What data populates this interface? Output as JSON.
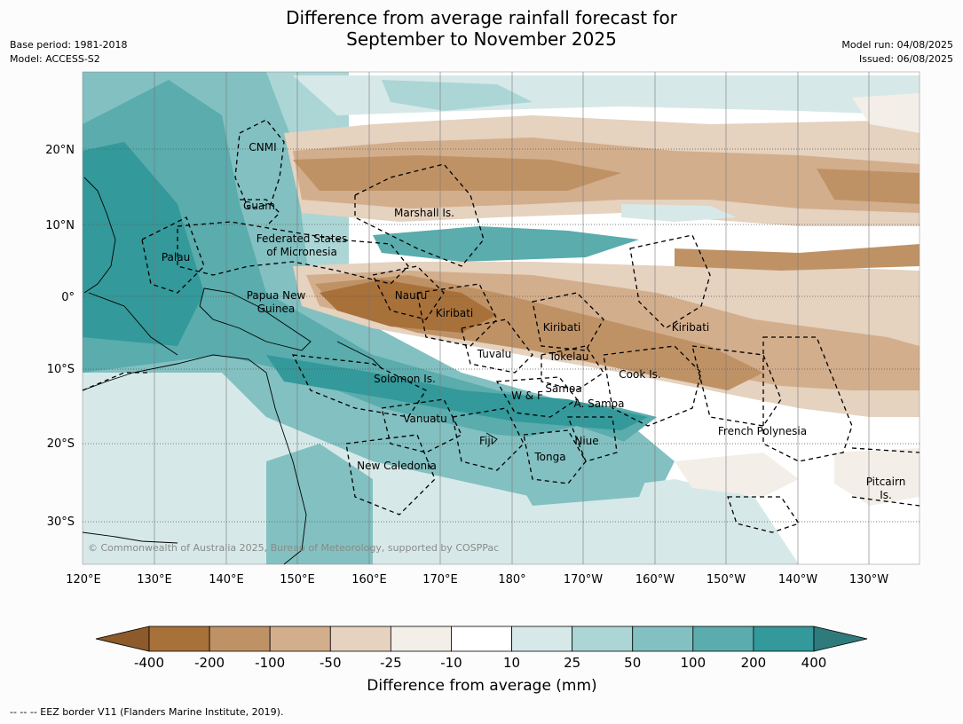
{
  "title": {
    "line1": "Difference from average rainfall forecast for",
    "line2": "September to November 2025"
  },
  "meta": {
    "base_period": "Base period: 1981-2018",
    "model": "Model: ACCESS-S2",
    "model_run": "Model run: 04/08/2025",
    "issued": "Issued: 06/08/2025"
  },
  "copyright": "© Commonwealth of Australia 2025, Bureau of Meteorology, supported by COSPPac",
  "axes": {
    "lon_ticks": [
      "120°E",
      "130°E",
      "140°E",
      "150°E",
      "160°E",
      "170°E",
      "180°",
      "170°W",
      "160°W",
      "150°W",
      "140°W",
      "130°W"
    ],
    "lat_ticks": [
      "20°N",
      "10°N",
      "0°",
      "10°S",
      "20°S",
      "30°S"
    ]
  },
  "region_labels": {
    "cnmi": "CNMI",
    "guam": "Guam",
    "marshall": "Marshall Is.",
    "fsm1": "Federated States",
    "fsm2": "of Micronesia",
    "palau": "Palau",
    "png1": "Papua New",
    "png2": "Guinea",
    "nauru": "Nauru",
    "kiribati_w": "Kiribati",
    "kiribati_c": "Kiribati",
    "kiribati_e": "Kiribati",
    "tuvalu": "Tuvalu",
    "tokelau": "Tokelau",
    "cook": "Cook Is.",
    "solomon": "Solomon Is.",
    "samoa": "Samoa",
    "wf": "W & F",
    "asamoa": "A. Samoa",
    "vanuatu": "Vanuatu",
    "fiji": "Fiji",
    "niue": "Niue",
    "tonga": "Tonga",
    "french_polynesia": "French Polynesia",
    "new_caledonia": "New Caledonia",
    "pitcairn1": "Pitcairn",
    "pitcairn2": "Is."
  },
  "colorbar": {
    "title": "Difference from average (mm)",
    "labels": [
      "-400",
      "-200",
      "-100",
      "-50",
      "-25",
      "-10",
      "10",
      "25",
      "50",
      "100",
      "200",
      "400"
    ],
    "colors": [
      "#a8713a",
      "#bf9266",
      "#d3ae8c",
      "#e5d2bf",
      "#f3eee7",
      "#ffffff",
      "#d6e9e8",
      "#acd6d6",
      "#83c0c1",
      "#5aacad",
      "#33999a"
    ],
    "under_color": "#8c5a2b",
    "over_color": "#2f7b7c"
  },
  "footer": "--  --  -- EEZ border V11 (Flanders Marine Institute, 2019)."
}
